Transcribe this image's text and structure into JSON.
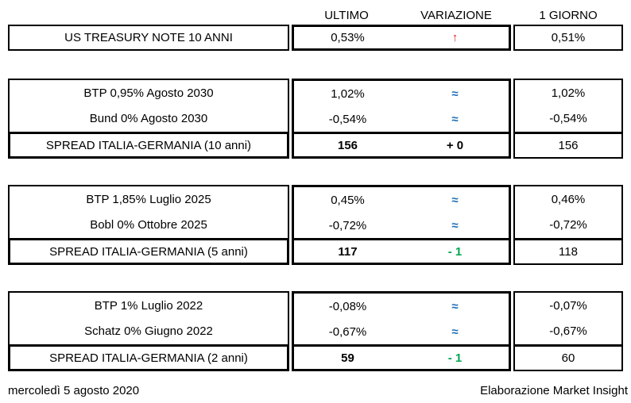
{
  "colors": {
    "red": "#e01f26",
    "blue": "#1f6eb5",
    "green": "#00a651",
    "black": "#000000"
  },
  "header": {
    "ultimo": "ULTIMO",
    "variazione": "VARIAZIONE",
    "giorno": "1 GIORNO"
  },
  "us_treasury": {
    "label": "US TREASURY NOTE 10 ANNI",
    "ultimo": "0,53%",
    "variazione": "↑",
    "giorno": "0,51%"
  },
  "sections": [
    {
      "rows": [
        {
          "label": "BTP 0,95% Agosto 2030",
          "ultimo": "1,02%",
          "variazione": "≈",
          "giorno": "1,02%"
        },
        {
          "label": "Bund 0% Agosto 2030",
          "ultimo": "-0,54%",
          "variazione": "≈",
          "giorno": "-0,54%"
        }
      ],
      "spread": {
        "label": "SPREAD ITALIA-GERMANIA (10 anni)",
        "ultimo": "156",
        "variazione": "+ 0",
        "giorno": "156"
      }
    },
    {
      "rows": [
        {
          "label": "BTP 1,85% Luglio 2025",
          "ultimo": "0,45%",
          "variazione": "≈",
          "giorno": "0,46%"
        },
        {
          "label": "Bobl 0% Ottobre 2025",
          "ultimo": "-0,72%",
          "variazione": "≈",
          "giorno": "-0,72%"
        }
      ],
      "spread": {
        "label": "SPREAD ITALIA-GERMANIA (5 anni)",
        "ultimo": "117",
        "variazione": "- 1",
        "giorno": "118"
      }
    },
    {
      "rows": [
        {
          "label": "BTP 1% Luglio 2022",
          "ultimo": "-0,08%",
          "variazione": "≈",
          "giorno": "-0,07%"
        },
        {
          "label": "Schatz 0% Giugno 2022",
          "ultimo": "-0,67%",
          "variazione": "≈",
          "giorno": "-0,67%"
        }
      ],
      "spread": {
        "label": "SPREAD ITALIA-GERMANIA (2 anni)",
        "ultimo": "59",
        "variazione": "- 1",
        "giorno": "60"
      }
    }
  ],
  "footer": {
    "date": "mercoledì 5 agosto 2020",
    "credit": "Elaborazione Market Insight"
  }
}
